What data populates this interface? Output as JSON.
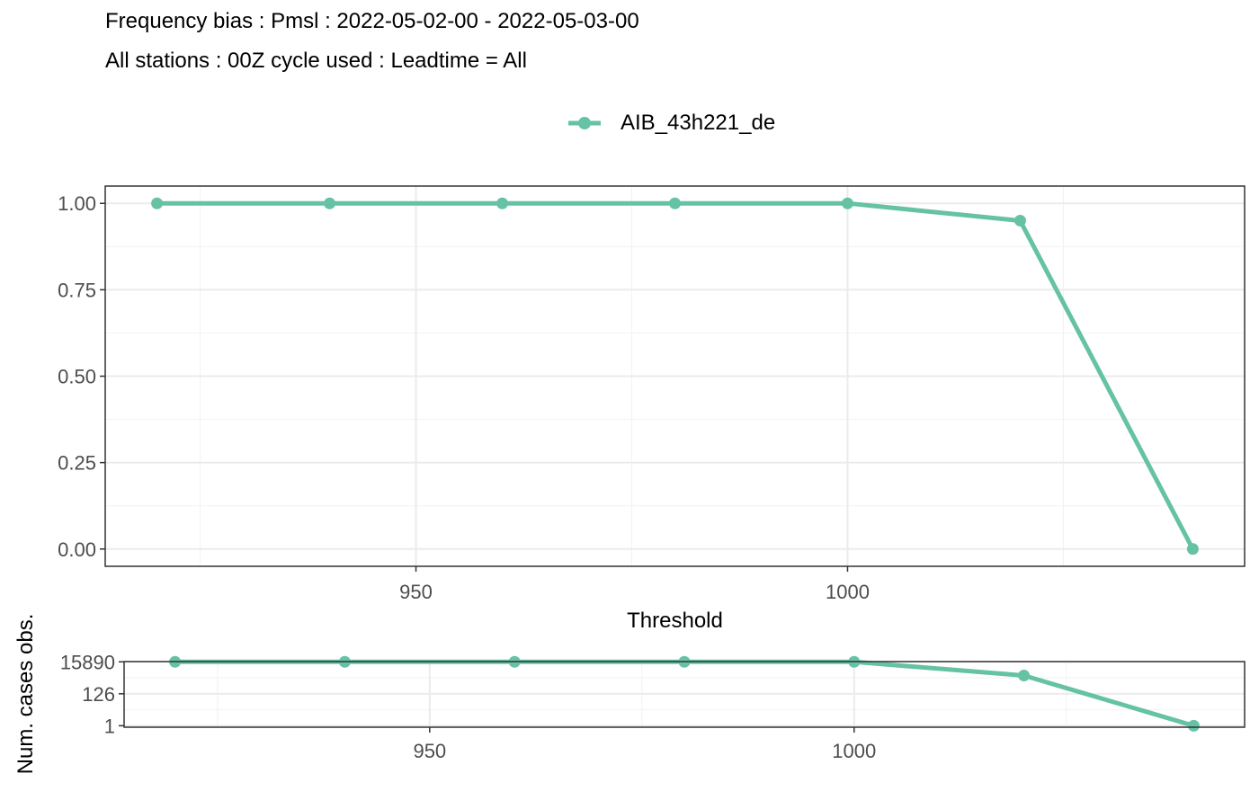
{
  "header": {
    "title_line1": "Frequency bias : Pmsl : 2022-05-02-00 - 2022-05-03-00",
    "title_line2": "All stations : 00Z cycle used : Leadtime = All"
  },
  "legend": {
    "label": "AIB_43h221_de",
    "position": "top"
  },
  "colors": {
    "series": "#66c2a5",
    "grid_major": "#ebebeb",
    "grid_minor": "#f2f2f2",
    "panel_border": "#333333",
    "tick_text": "#4d4d4d"
  },
  "chart_data": [
    {
      "type": "line",
      "xlabel": "Threshold",
      "ylabel": "",
      "xlim": [
        914,
        1046
      ],
      "ylim": [
        -0.05,
        1.05
      ],
      "x_ticks": [
        950,
        1000
      ],
      "x_tick_labels": [
        "950",
        "1000"
      ],
      "y_ticks": [
        0,
        0.25,
        0.5,
        0.75,
        1.0
      ],
      "y_tick_labels": [
        "0.00",
        "0.25",
        "0.50",
        "0.75",
        "1.00"
      ],
      "grid": true,
      "series": [
        {
          "name": "AIB_43h221_de",
          "x": [
            920,
            940,
            960,
            980,
            1000,
            1020,
            1040
          ],
          "y": [
            1.0,
            1.0,
            1.0,
            1.0,
            1.0,
            0.95,
            0.0
          ]
        }
      ]
    },
    {
      "type": "line",
      "xlabel": "",
      "ylabel": "Num. cases obs.",
      "y_scale": "log",
      "xlim": [
        914,
        1046
      ],
      "ylim": [
        0.8,
        16500
      ],
      "x_ticks": [
        950,
        1000
      ],
      "x_tick_labels": [
        "950",
        "1000"
      ],
      "y_ticks": [
        1,
        126,
        15890
      ],
      "y_tick_labels": [
        "1",
        "126",
        "15890"
      ],
      "grid": true,
      "series": [
        {
          "name": "AIB_43h221_de",
          "x": [
            920,
            940,
            960,
            980,
            1000,
            1020,
            1040
          ],
          "y": [
            15890,
            15890,
            15890,
            15890,
            15890,
            2000,
            1
          ]
        }
      ]
    }
  ]
}
